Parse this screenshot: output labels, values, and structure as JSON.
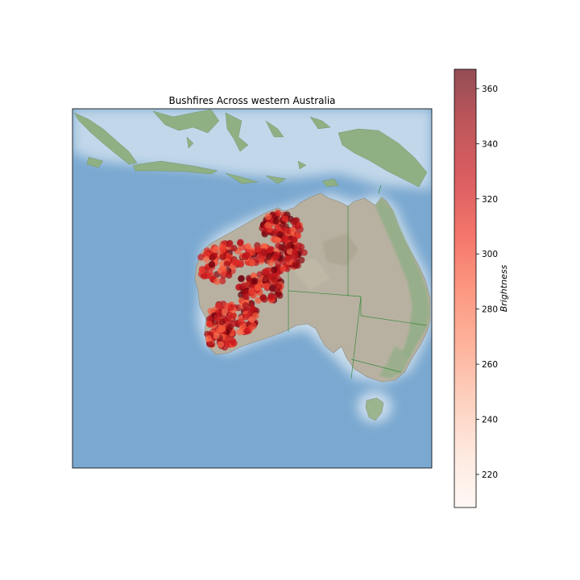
{
  "title": "Bushfires Across western Australia",
  "colorbar": {
    "label": "Brightness",
    "min": 208,
    "max": 367,
    "ticks": [
      220,
      240,
      260,
      280,
      300,
      320,
      340,
      360
    ],
    "colormap": "Reds",
    "alpha": 0.6
  },
  "map": {
    "projection": "basemap shaded relief",
    "ocean_color": "#7aa8d0",
    "land_color": "#b5ae9c",
    "relief_color": "#8fb083",
    "border_color": "#3a8a3a",
    "fire_region": "western Australia"
  }
}
